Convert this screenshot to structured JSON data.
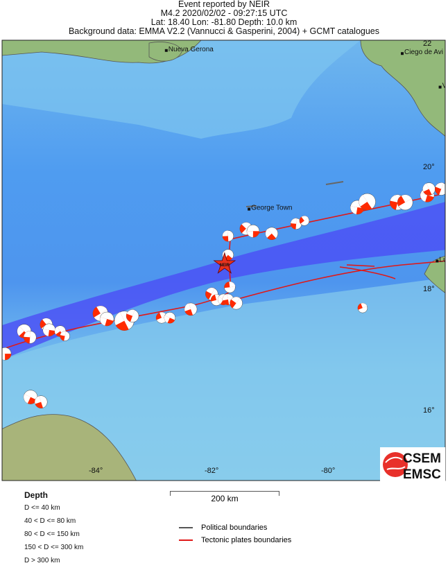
{
  "header": {
    "line1": "Event reported by NEIR",
    "line2": "M4.2  2020/02/02 - 09:27:15 UTC",
    "line3": "Lat: 18.40    Lon: -81.80     Depth:  10.0 km",
    "line4": "Background data: EMMA V2.2 (Vannucci & Gasperini, 2004) + GCMT catalogues"
  },
  "map": {
    "epicenter": {
      "lon": -81.8,
      "lat": 18.4,
      "label": "NEIR",
      "color": "#e8321e"
    },
    "places": [
      {
        "name": "Nueva Gerona",
        "lon": -82.8,
        "lat": 21.9
      },
      {
        "name": "Ciego de Avi",
        "lon": -78.75,
        "lat": 21.85
      },
      {
        "name": "Ve",
        "lon": -78.1,
        "lat": 21.3
      },
      {
        "name": "George Town",
        "lon": -81.38,
        "lat": 19.3
      },
      {
        "name": "Lu",
        "lon": -78.15,
        "lat": 18.45
      }
    ],
    "lon_ticks": [
      "-84°",
      "-82°",
      "-80°"
    ],
    "lat_ticks": [
      "22",
      "20°",
      "18°",
      "16°"
    ],
    "colors": {
      "land": "#93b97a",
      "shallow_sea": "#8fd3ee",
      "deep_sea": "#3f8ff0",
      "trough": "#4b4df5",
      "tectonic": "#e01818",
      "political": "#555555",
      "beachball": "#ff2a00"
    },
    "events": [
      [
        -85.57,
        16.93,
        9
      ],
      [
        -85.24,
        17.3,
        10
      ],
      [
        -85.14,
        17.2,
        9
      ],
      [
        -84.86,
        17.41,
        9
      ],
      [
        -84.81,
        17.32,
        9
      ],
      [
        -84.62,
        17.3,
        8
      ],
      [
        -84.54,
        17.22,
        7
      ],
      [
        -83.93,
        17.59,
        11
      ],
      [
        -83.82,
        17.5,
        10
      ],
      [
        -83.52,
        17.47,
        14
      ],
      [
        -83.38,
        17.55,
        9
      ],
      [
        -82.88,
        17.52,
        8
      ],
      [
        -82.74,
        17.52,
        8
      ],
      [
        -82.38,
        17.66,
        9
      ],
      [
        -82.02,
        17.91,
        9
      ],
      [
        -81.94,
        17.81,
        8
      ],
      [
        -81.82,
        17.82,
        8
      ],
      [
        -81.74,
        17.82,
        8
      ],
      [
        -81.6,
        17.76,
        9
      ],
      [
        -81.71,
        18.02,
        8
      ],
      [
        -81.74,
        18.55,
        8
      ],
      [
        -81.74,
        18.86,
        8
      ],
      [
        -81.43,
        18.98,
        9
      ],
      [
        -81.31,
        18.94,
        9
      ],
      [
        -80.99,
        18.9,
        9
      ],
      [
        -80.57,
        19.06,
        8
      ],
      [
        -80.43,
        19.11,
        7
      ],
      [
        -79.52,
        19.33,
        10
      ],
      [
        -79.35,
        19.42,
        12
      ],
      [
        -78.83,
        19.41,
        11
      ],
      [
        -78.7,
        19.41,
        11
      ],
      [
        -78.32,
        19.53,
        10
      ],
      [
        -78.29,
        19.63,
        9
      ],
      [
        -78.08,
        19.63,
        9
      ],
      [
        -79.43,
        17.68,
        7
      ],
      [
        -85.13,
        16.22,
        10
      ],
      [
        -84.95,
        16.14,
        9
      ]
    ]
  },
  "legend": {
    "depth_title": "Depth",
    "depth_items": [
      "D <= 40 km",
      "40 < D <= 80 km",
      "80 < D <= 150 km",
      "150 < D <= 300 km",
      "D > 300 km"
    ],
    "scale_label": "200 km",
    "political": "Political boundaries",
    "tectonic": "Tectonic plates boundaries"
  },
  "logo": {
    "top": "CSEM",
    "bottom": "EMSC"
  }
}
